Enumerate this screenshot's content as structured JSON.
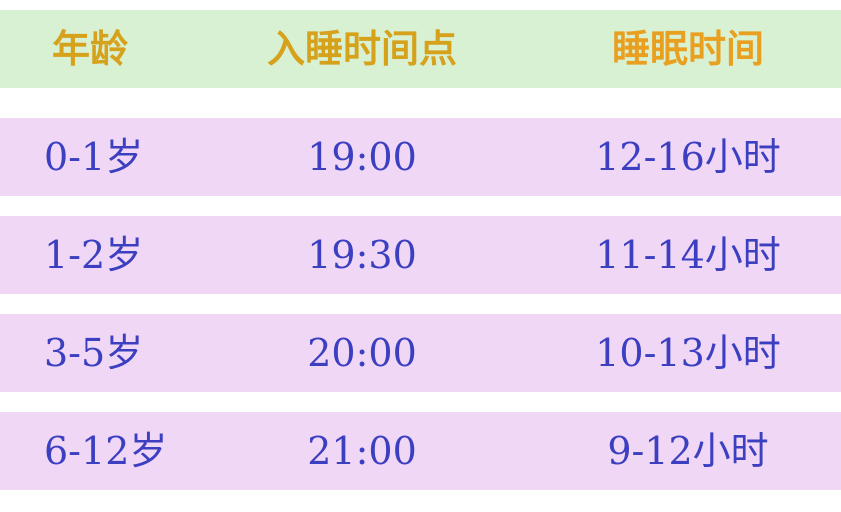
{
  "table": {
    "header": [
      "年龄",
      "入睡时间点",
      "睡眠时间"
    ],
    "rows": [
      [
        "0-1岁",
        "19:00",
        "12-16小时"
      ],
      [
        "1-2岁",
        "19:30",
        "11-14小时"
      ],
      [
        "3-5岁",
        "20:00",
        "10-13小时"
      ],
      [
        "6-12岁",
        "21:00",
        "9-12小时"
      ]
    ]
  }
}
